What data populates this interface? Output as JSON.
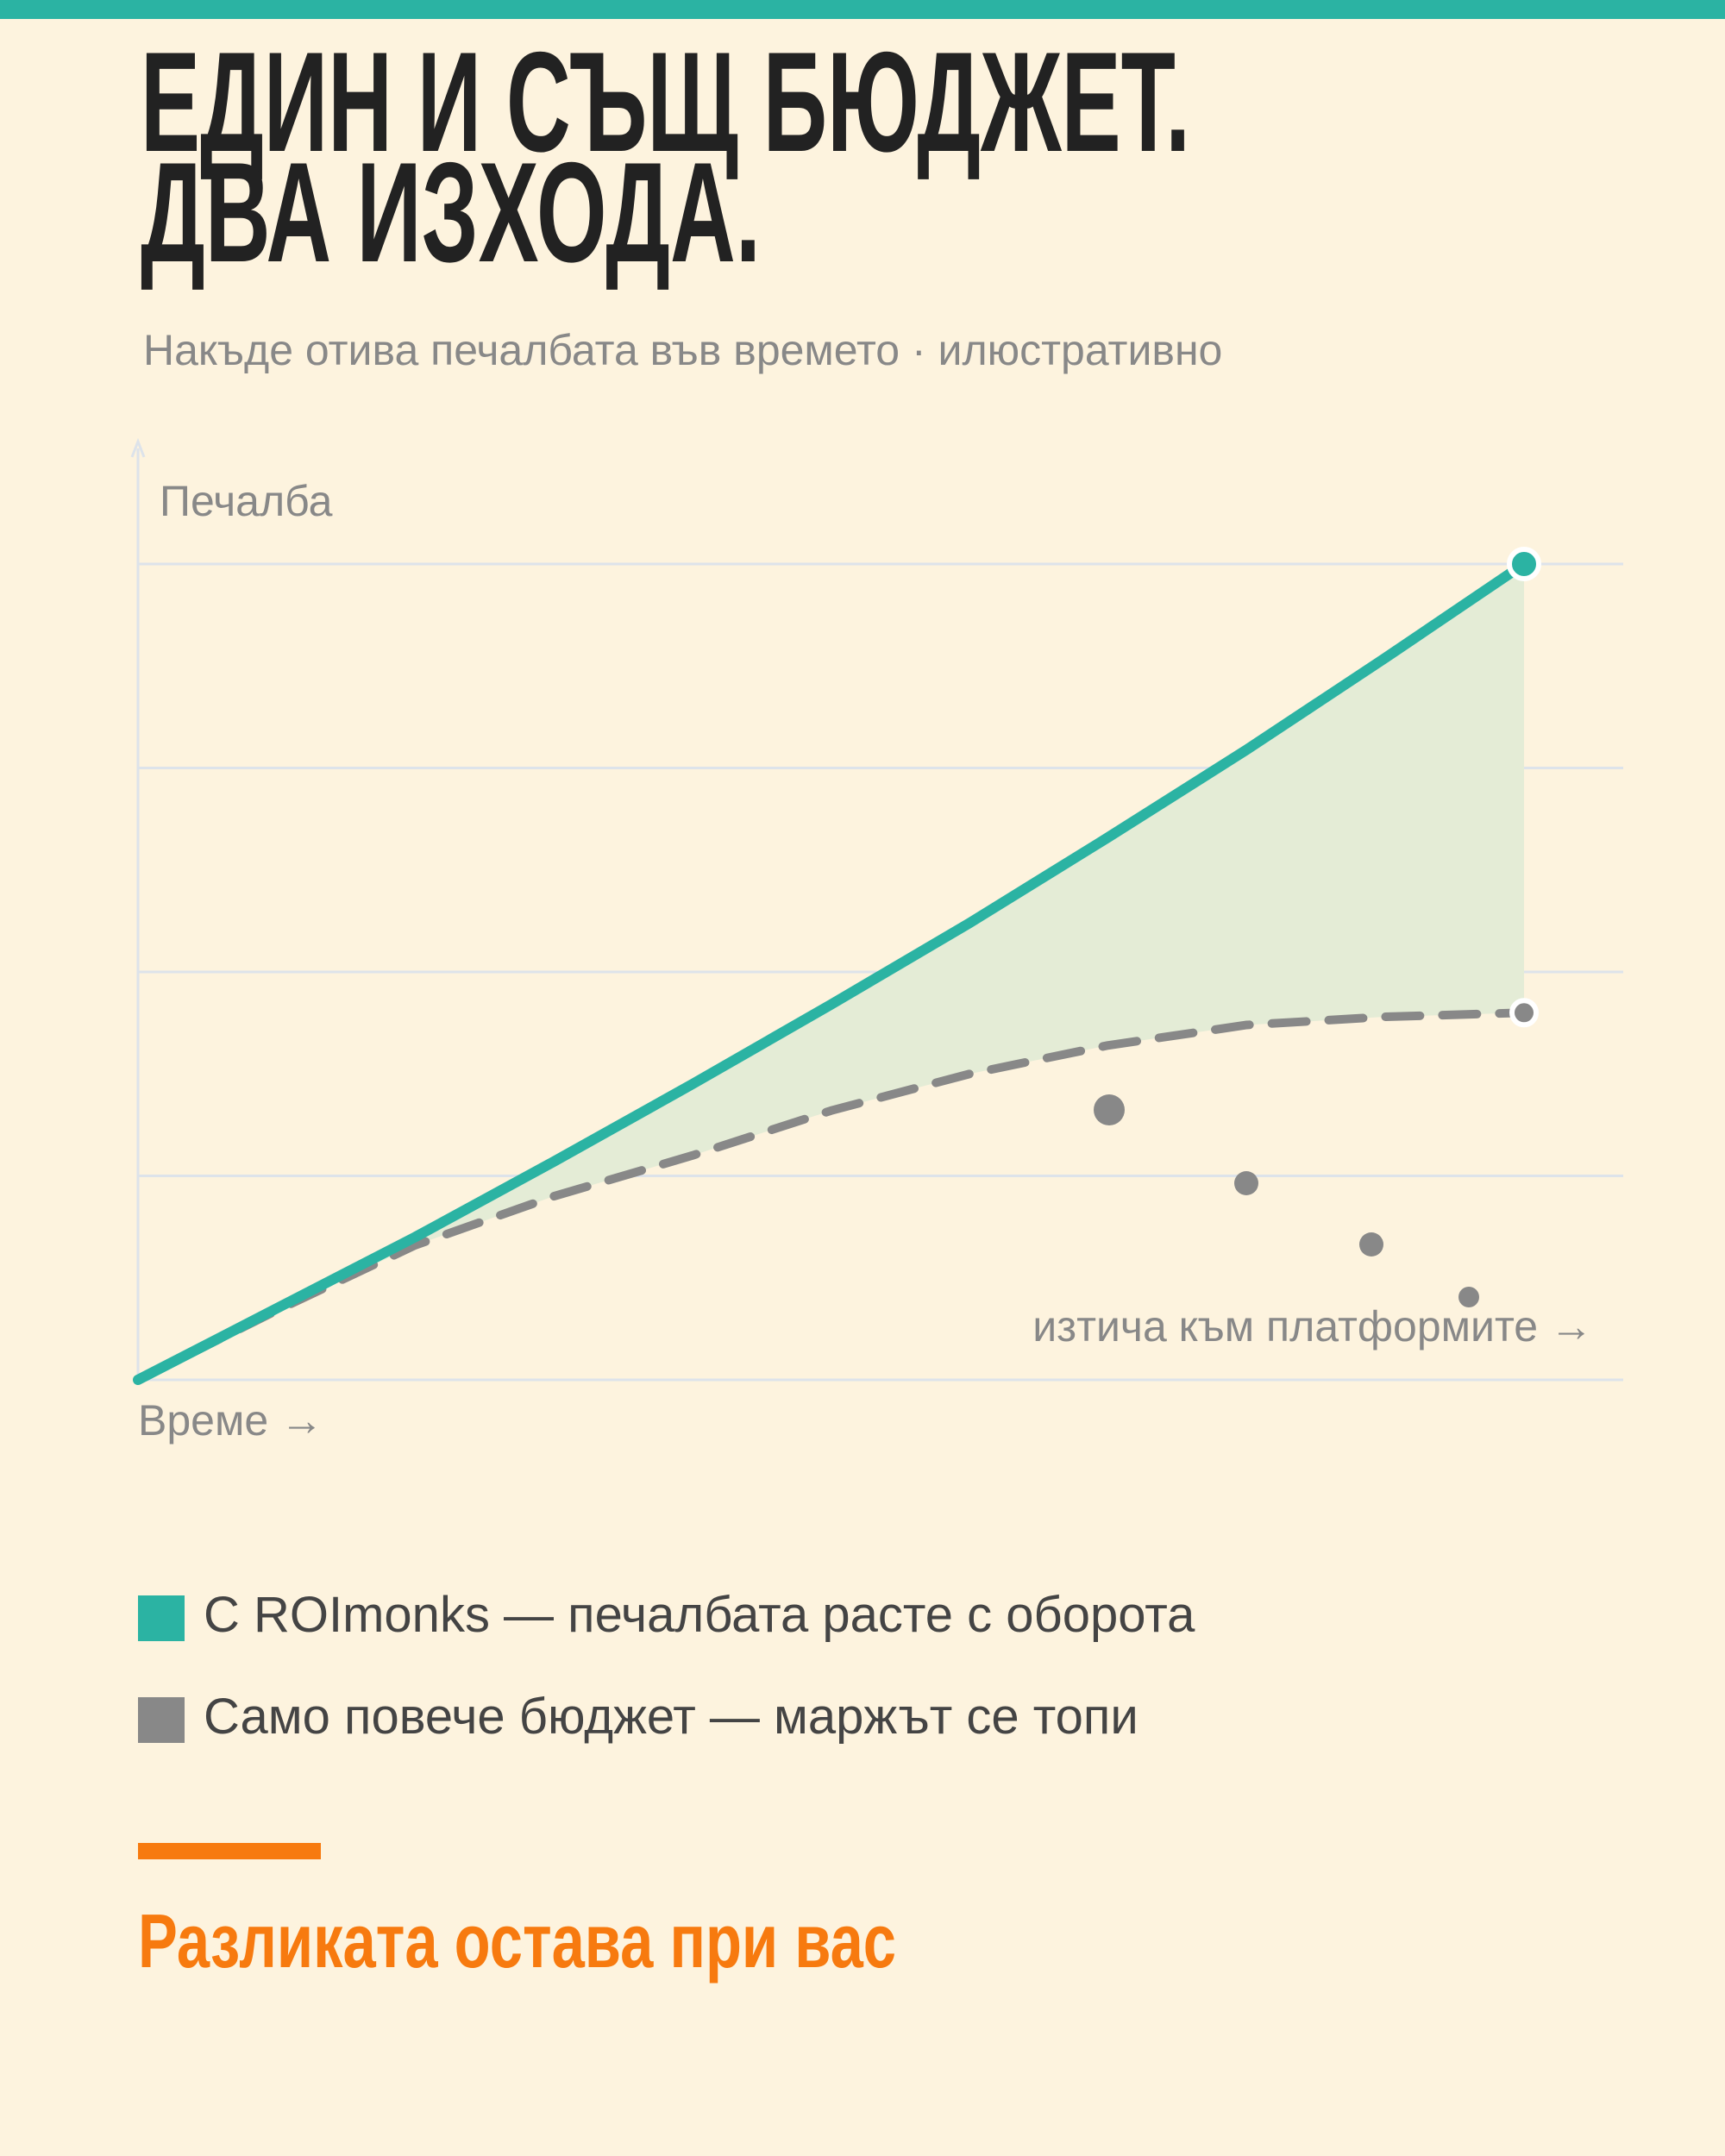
{
  "chart_data": {
    "type": "line",
    "title": [
      "ЕДИН И СЪЩ БЮДЖЕТ.",
      "ДВА ИЗХОДА."
    ],
    "subtitle": "Накъде отива печалбата във времето · илюстративно",
    "y_label": "Печалба",
    "x_label": "Време →",
    "annotation": "изтича към платформите →",
    "footer": "Разликата остава при вас",
    "x": [
      0,
      1,
      2,
      3,
      4,
      5,
      6,
      7,
      8,
      9,
      10
    ],
    "xlim": [
      0,
      10
    ],
    "ylim": [
      0,
      4
    ],
    "yticks": [
      0,
      1,
      2,
      3,
      4
    ],
    "grid": true,
    "series": [
      {
        "name": "С ROImonks — печалбата расте с оборота",
        "color": "#2bb3a3",
        "values": [
          0,
          0.35,
          0.7,
          1.07,
          1.45,
          1.84,
          2.24,
          2.66,
          3.09,
          3.54,
          4.0
        ]
      },
      {
        "name": "Само повече бюджет — маржът се топи",
        "color": "#888888",
        "values": [
          0,
          0.34,
          0.66,
          0.9,
          1.1,
          1.32,
          1.5,
          1.64,
          1.74,
          1.78,
          1.8
        ]
      }
    ]
  }
}
